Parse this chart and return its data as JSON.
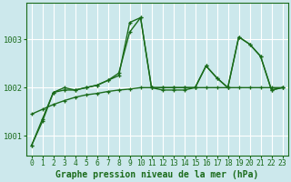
{
  "title": "Graphe pression niveau de la mer (hPa)",
  "bg_color": "#cce8ec",
  "grid_color": "#ffffff",
  "line_color": "#1a6b1a",
  "xlim": [
    -0.5,
    23.5
  ],
  "ylim": [
    1000.6,
    1003.75
  ],
  "yticks": [
    1001,
    1002,
    1003
  ],
  "xticks": [
    0,
    1,
    2,
    3,
    4,
    5,
    6,
    7,
    8,
    9,
    10,
    11,
    12,
    13,
    14,
    15,
    16,
    17,
    18,
    19,
    20,
    21,
    22,
    23
  ],
  "s1": [
    1000.8,
    1001.3,
    1001.9,
    1001.95,
    1001.95,
    1002.0,
    1002.05,
    1002.15,
    1002.3,
    1003.15,
    1003.45,
    1002.0,
    1001.95,
    1001.95,
    1001.95,
    1002.0,
    1002.45,
    1002.2,
    1002.0,
    1003.05,
    1002.9,
    1002.65,
    1001.95,
    1002.0
  ],
  "s2": [
    1000.8,
    1001.35,
    1001.9,
    1002.0,
    1001.95,
    1002.0,
    1002.05,
    1002.15,
    1002.25,
    1003.35,
    1003.45,
    1002.0,
    1002.0,
    1002.0,
    1002.0,
    1002.0,
    1002.45,
    1002.2,
    1002.0,
    1003.05,
    1002.9,
    1002.65,
    1001.95,
    1002.0
  ],
  "s3": [
    1001.45,
    1001.55,
    1001.65,
    1001.73,
    1001.8,
    1001.85,
    1001.88,
    1001.92,
    1001.95,
    1001.97,
    1002.0,
    1002.0,
    1002.0,
    1002.0,
    1002.0,
    1002.0,
    1002.0,
    1002.0,
    1002.0,
    1002.0,
    1002.0,
    1002.0,
    1002.0,
    1002.0
  ],
  "title_fontsize": 7.0,
  "tick_fontsize": 5.8
}
